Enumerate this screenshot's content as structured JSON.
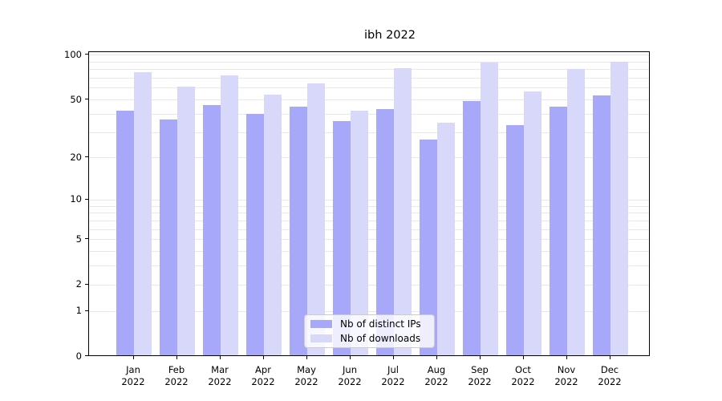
{
  "chart_data": {
    "type": "bar",
    "title": "ibh 2022",
    "categories": [
      "Jan",
      "Feb",
      "Mar",
      "Apr",
      "May",
      "Jun",
      "Jul",
      "Aug",
      "Sep",
      "Oct",
      "Nov",
      "Dec"
    ],
    "year_label": "2022",
    "series": [
      {
        "name": "Nb of distinct IPs",
        "color": "#a8a8fa",
        "values": [
          41,
          36,
          45,
          39,
          44,
          35,
          42,
          26,
          48,
          33,
          44,
          52
        ]
      },
      {
        "name": "Nb of downloads",
        "color": "#d8d8fa",
        "values": [
          75,
          60,
          71,
          53,
          63,
          41,
          80,
          34,
          87,
          56,
          79,
          88
        ]
      }
    ],
    "yscale": "log1p",
    "ylim": [
      0,
      105
    ],
    "yticks": [
      100,
      50,
      20,
      10,
      5,
      2,
      1,
      0
    ],
    "gridline_values": [
      1,
      2,
      3,
      4,
      5,
      6,
      7,
      8,
      9,
      10,
      20,
      30,
      40,
      50,
      60,
      70,
      80,
      90,
      100
    ],
    "grid_color": "#e8e8e8",
    "axis_color": "#000000",
    "text_color": "#000000",
    "legend_border_color": "#cccccc",
    "legend_position": "lower center",
    "grid_on": true
  }
}
